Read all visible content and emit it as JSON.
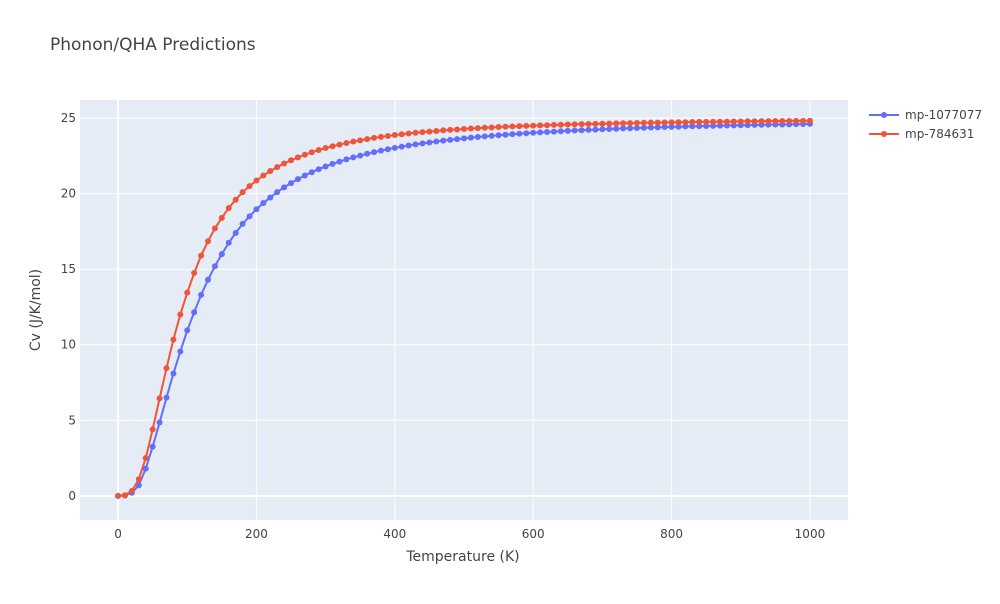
{
  "chart_data": {
    "type": "line",
    "title": "Phonon/QHA Predictions",
    "xlabel": "Temperature (K)",
    "ylabel": "Cv (J/K/mol)",
    "xlim": [
      -55,
      1055
    ],
    "ylim": [
      -1.6,
      26.2
    ],
    "xticks": [
      0,
      200,
      400,
      600,
      800,
      1000
    ],
    "yticks": [
      0,
      5,
      10,
      15,
      20,
      25
    ],
    "grid": true,
    "legend_position": "top-right",
    "colors": {
      "plot_bg": "#e5ecf6",
      "grid": "#ffffff"
    },
    "x": [
      0,
      10,
      20,
      30,
      40,
      50,
      60,
      70,
      80,
      90,
      100,
      110,
      120,
      130,
      140,
      150,
      160,
      170,
      180,
      190,
      200,
      210,
      220,
      230,
      240,
      250,
      260,
      270,
      280,
      290,
      300,
      310,
      320,
      330,
      340,
      350,
      360,
      370,
      380,
      390,
      400,
      410,
      420,
      430,
      440,
      450,
      460,
      470,
      480,
      490,
      500,
      510,
      520,
      530,
      540,
      550,
      560,
      570,
      580,
      590,
      600,
      610,
      620,
      630,
      640,
      650,
      660,
      670,
      680,
      690,
      700,
      710,
      720,
      730,
      740,
      750,
      760,
      770,
      780,
      790,
      800,
      810,
      820,
      830,
      840,
      850,
      860,
      870,
      880,
      890,
      900,
      910,
      920,
      930,
      940,
      950,
      960,
      970,
      980,
      990,
      1000
    ],
    "series": [
      {
        "name": "mp-1077077",
        "color": "#636efa",
        "values": [
          0.0,
          0.02,
          0.2,
          0.7,
          1.8,
          3.25,
          4.85,
          6.5,
          8.1,
          9.55,
          10.95,
          12.15,
          13.3,
          14.3,
          15.2,
          16.0,
          16.75,
          17.4,
          18.0,
          18.5,
          18.97,
          19.38,
          19.75,
          20.1,
          20.42,
          20.7,
          20.96,
          21.2,
          21.42,
          21.62,
          21.8,
          21.97,
          22.12,
          22.27,
          22.4,
          22.52,
          22.64,
          22.75,
          22.85,
          22.94,
          23.03,
          23.11,
          23.19,
          23.26,
          23.33,
          23.39,
          23.45,
          23.51,
          23.56,
          23.61,
          23.66,
          23.71,
          23.75,
          23.79,
          23.83,
          23.87,
          23.9,
          23.94,
          23.97,
          24.0,
          24.03,
          24.06,
          24.08,
          24.11,
          24.13,
          24.16,
          24.18,
          24.2,
          24.22,
          24.24,
          24.26,
          24.28,
          24.3,
          24.32,
          24.33,
          24.35,
          24.36,
          24.38,
          24.39,
          24.41,
          24.42,
          24.43,
          24.45,
          24.46,
          24.47,
          24.48,
          24.49,
          24.5,
          24.51,
          24.52,
          24.53,
          24.54,
          24.55,
          24.56,
          24.57,
          24.58,
          24.58,
          24.59,
          24.6,
          24.61,
          24.62
        ]
      },
      {
        "name": "mp-784631",
        "color": "#ef553b",
        "values": [
          0.0,
          0.04,
          0.33,
          1.1,
          2.5,
          4.4,
          6.45,
          8.45,
          10.35,
          12.0,
          13.45,
          14.75,
          15.9,
          16.85,
          17.7,
          18.4,
          19.05,
          19.6,
          20.1,
          20.5,
          20.87,
          21.2,
          21.5,
          21.76,
          22.0,
          22.21,
          22.4,
          22.58,
          22.74,
          22.89,
          23.02,
          23.14,
          23.25,
          23.35,
          23.45,
          23.53,
          23.61,
          23.69,
          23.76,
          23.82,
          23.88,
          23.93,
          23.98,
          24.03,
          24.07,
          24.11,
          24.15,
          24.19,
          24.22,
          24.25,
          24.28,
          24.31,
          24.34,
          24.36,
          24.38,
          24.41,
          24.43,
          24.45,
          24.47,
          24.49,
          24.5,
          24.52,
          24.53,
          24.55,
          24.56,
          24.58,
          24.59,
          24.6,
          24.61,
          24.62,
          24.63,
          24.64,
          24.65,
          24.66,
          24.67,
          24.68,
          24.69,
          24.7,
          24.7,
          24.71,
          24.72,
          24.73,
          24.73,
          24.74,
          24.75,
          24.75,
          24.76,
          24.76,
          24.77,
          24.78,
          24.78,
          24.79,
          24.79,
          24.8,
          24.8,
          24.81,
          24.81,
          24.81,
          24.82,
          24.82,
          24.83
        ]
      }
    ]
  }
}
